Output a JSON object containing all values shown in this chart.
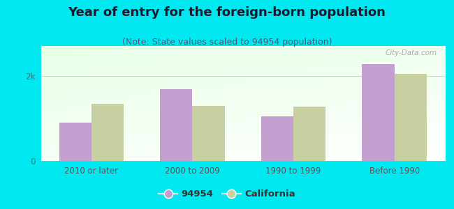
{
  "title": "Year of entry for the foreign-born population",
  "subtitle": "(Note: State values scaled to 94954 population)",
  "categories": [
    "2010 or later",
    "2000 to 2009",
    "1990 to 1999",
    "Before 1990"
  ],
  "values_94954": [
    900,
    1680,
    1050,
    2280
  ],
  "values_california": [
    1350,
    1300,
    1280,
    2050
  ],
  "color_94954": "#c4a0d0",
  "color_california": "#c8cfa0",
  "background_outer": "#00e8f0",
  "ylim": [
    0,
    2700
  ],
  "yticks": [
    0,
    2000
  ],
  "ytick_labels": [
    "0",
    "2k"
  ],
  "legend_94954": "94954",
  "legend_california": "California",
  "bar_width": 0.32,
  "title_fontsize": 13,
  "subtitle_fontsize": 9,
  "axis_label_fontsize": 8.5,
  "watermark": "City-Data.com"
}
